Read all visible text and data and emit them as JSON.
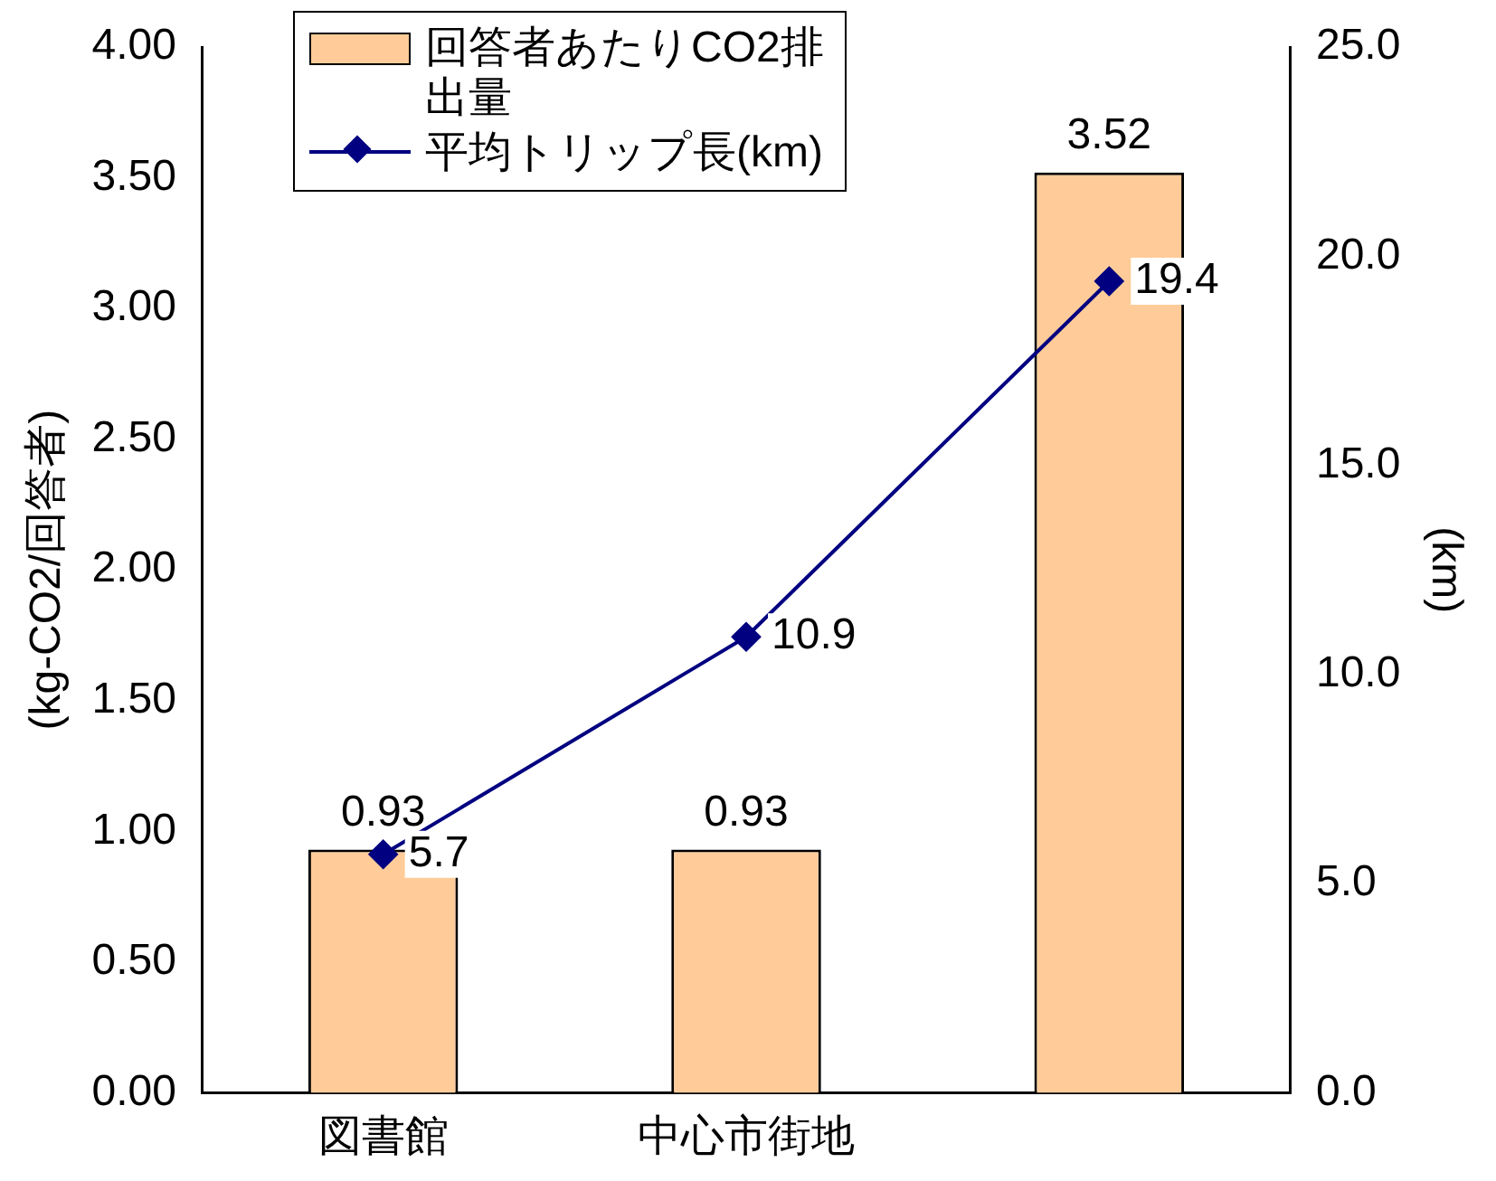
{
  "chart_data": {
    "type": "bar",
    "categories": [
      "図書館",
      "中心市街地",
      null
    ],
    "series": [
      {
        "name": "回答者あたりCO2排出量",
        "color": "#ffcc99",
        "values": [
          0.93,
          0.93,
          3.52
        ]
      },
      {
        "name": "平均トリップ長(km)",
        "type": "line",
        "axis": "y2",
        "color": "#000080",
        "marker": "diamond",
        "values": [
          5.7,
          10.9,
          19.4
        ]
      }
    ],
    "ylabel": "(kg-CO2/回答者)",
    "y2label": "(km)",
    "ylim": [
      0,
      4
    ],
    "yticks": [
      {
        "value": 0,
        "label": "0.00"
      },
      {
        "value": 0.5,
        "label": "0.50"
      },
      {
        "value": 1,
        "label": "1.00"
      },
      {
        "value": 1.5,
        "label": "1.50"
      },
      {
        "value": 2,
        "label": "2.00"
      },
      {
        "value": 2.5,
        "label": "2.50"
      },
      {
        "value": 3,
        "label": "3.00"
      },
      {
        "value": 3.5,
        "label": "3.50"
      },
      {
        "value": 4,
        "label": "4.00"
      }
    ],
    "y2lim": [
      0,
      25
    ],
    "y2ticks": [
      {
        "value": 0,
        "label": "0.0"
      },
      {
        "value": 5,
        "label": "5.0"
      },
      {
        "value": 10,
        "label": "10.0"
      },
      {
        "value": 15,
        "label": "15.0"
      },
      {
        "value": 20,
        "label": "20.0"
      },
      {
        "value": 25,
        "label": "25.0"
      }
    ],
    "data_labels": true,
    "grid": false,
    "legend": "top left"
  }
}
